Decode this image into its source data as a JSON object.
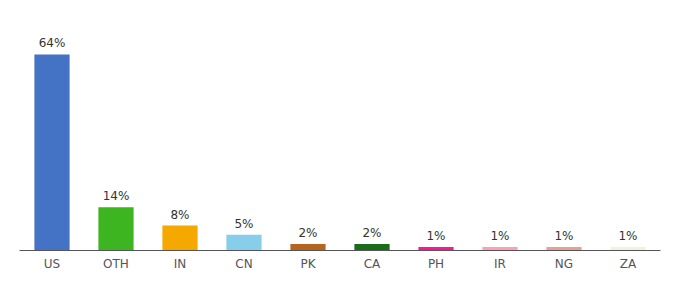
{
  "chart_data": {
    "type": "bar",
    "categories": [
      "US",
      "OTH",
      "IN",
      "CN",
      "PK",
      "CA",
      "PH",
      "IR",
      "NG",
      "ZA"
    ],
    "values": [
      64,
      14,
      8,
      5,
      2,
      2,
      1,
      1,
      1,
      1
    ],
    "value_labels": [
      "64%",
      "14%",
      "8%",
      "5%",
      "2%",
      "2%",
      "1%",
      "1%",
      "1%",
      "1%"
    ],
    "colors": [
      "#4472c4",
      "#3cb521",
      "#f5a800",
      "#87ceeb",
      "#b5651d",
      "#1a6b1a",
      "#ff1493",
      "#ff9eb5",
      "#e8a090",
      "#f5f0d8"
    ],
    "data_labels": true,
    "ylim": [
      0,
      72
    ],
    "grid": false,
    "tick_labels": "x"
  }
}
